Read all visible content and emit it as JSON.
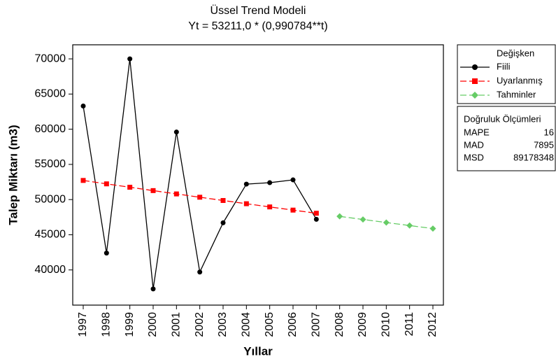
{
  "chart_data": {
    "type": "line",
    "title": "Üssel Trend Modeli",
    "subtitle": "Yt = 53211,0 * (0,990784**t)",
    "xlabel": "Yıllar",
    "ylabel": "Talep Miktarı (m3)",
    "xlim": [
      1996.55,
      2012.45
    ],
    "xticks": [
      1997,
      1998,
      1999,
      2000,
      2001,
      2002,
      2003,
      2004,
      2005,
      2006,
      2007,
      2008,
      2009,
      2010,
      2011,
      2012
    ],
    "ylim": [
      35000,
      72000
    ],
    "yticks": [
      40000,
      45000,
      50000,
      55000,
      60000,
      65000,
      70000
    ],
    "legend_title": "Değişken",
    "series": [
      {
        "name": "Fiili",
        "color": "#000000",
        "marker": "circle",
        "dash": false,
        "x": [
          1997,
          1998,
          1999,
          2000,
          2001,
          2002,
          2003,
          2004,
          2005,
          2006,
          2007
        ],
        "values": [
          63300,
          42400,
          70000,
          37300,
          59600,
          39700,
          46700,
          52200,
          52400,
          52800,
          47200
        ]
      },
      {
        "name": "Uyarlanmış",
        "color": "#ff0000",
        "marker": "square",
        "dash": true,
        "x": [
          1997,
          1998,
          1999,
          2000,
          2001,
          2002,
          2003,
          2004,
          2005,
          2006,
          2007
        ],
        "values": [
          52720,
          52234,
          51753,
          51276,
          50803,
          50335,
          49871,
          49411,
          48956,
          48504,
          48057
        ]
      },
      {
        "name": "Tahminler",
        "color": "#66cc66",
        "marker": "diamond",
        "dash": true,
        "x": [
          2008,
          2009,
          2010,
          2011,
          2012
        ],
        "values": [
          47614,
          47175,
          46740,
          46309,
          45882
        ]
      }
    ],
    "accuracy": {
      "title": "Doğruluk Ölçümleri",
      "rows": [
        [
          "MAPE",
          "16"
        ],
        [
          "MAD",
          "7895"
        ],
        [
          "MSD",
          "89178348"
        ]
      ]
    }
  }
}
